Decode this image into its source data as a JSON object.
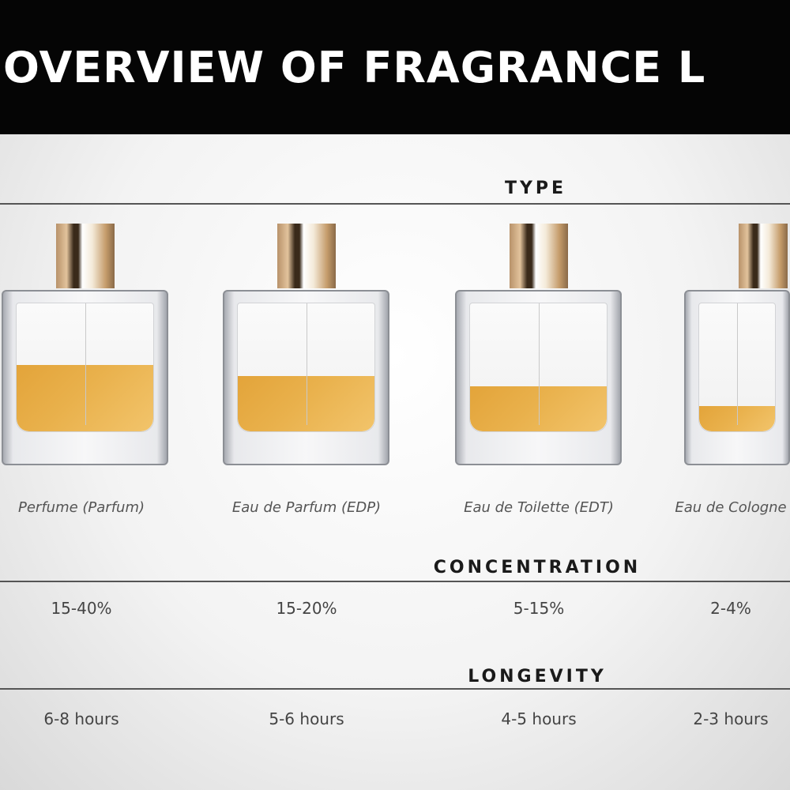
{
  "title": "OVERVIEW OF FRAGRANCE L",
  "sections": {
    "type": "TYPE",
    "concentration": "CONCENTRATION",
    "longevity": "LONGEVITY"
  },
  "colors": {
    "header_bg": "#050505",
    "liquid": "#e3a43a",
    "cap": "#c59c6b"
  },
  "fragrances": [
    {
      "name": "Perfume (Parfum)",
      "concentration": "15-40%",
      "longevity": "6-8 hours",
      "fill_level": 0.52
    },
    {
      "name": "Eau de Parfum (EDP)",
      "concentration": "15-20%",
      "longevity": "5-6 hours",
      "fill_level": 0.43
    },
    {
      "name": "Eau de Toilette (EDT)",
      "concentration": "5-15%",
      "longevity": "4-5 hours",
      "fill_level": 0.35
    },
    {
      "name": "Eau de Cologne",
      "concentration": "2-4%",
      "longevity": "2-3 hours",
      "fill_level": 0.2
    }
  ]
}
